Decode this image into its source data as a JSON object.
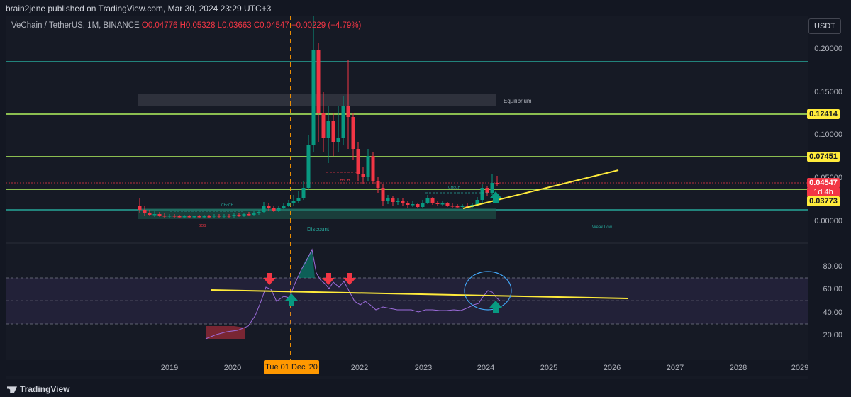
{
  "topbar": {
    "text": "brain2jene published on TradingView.com, Mar 30, 2024 23:29 UTC+3"
  },
  "legend": {
    "symbol": "VeChain / TetherUS, 1M, BINANCE",
    "open": "O0.04776",
    "high": "H0.05328",
    "low": "L0.03663",
    "close": "C0.04547",
    "change": "−0.00229 (−4.79%)"
  },
  "currency_button": "USDT",
  "price_axis": [
    "0.20000",
    "0.15000",
    "0.10000",
    "0.05000",
    "0.00000"
  ],
  "price_tags": {
    "level1": "0.12414",
    "level2": "0.07451",
    "current": "0.04547",
    "countdown": "1d 4h",
    "level3": "0.03773"
  },
  "rsi_axis": [
    "80.00",
    "60.00",
    "40.00",
    "20.00"
  ],
  "annotations": {
    "equilibrium": "Equilibrium",
    "discount": "Discount",
    "weak_low": "Weak Low",
    "bos": "BOS",
    "choch1": "CHoCH",
    "choch2": "CHoCH",
    "choch3": "CHoCH"
  },
  "time_axis": [
    "2019",
    "2020",
    "2022",
    "2023",
    "2024",
    "2025",
    "2026",
    "2027",
    "2028",
    "2029"
  ],
  "crosshair_date": "Tue 01 Dec '20",
  "footer": {
    "brand": "TradingView"
  },
  "colors": {
    "background": "#131722",
    "up": "#089981",
    "down": "#f23645",
    "level_line": "#b2f35f",
    "teal_line": "#26a69a",
    "trend_line": "#ffeb3b",
    "crosshair": "#ff9800",
    "rsi": "#7e57c2"
  }
}
